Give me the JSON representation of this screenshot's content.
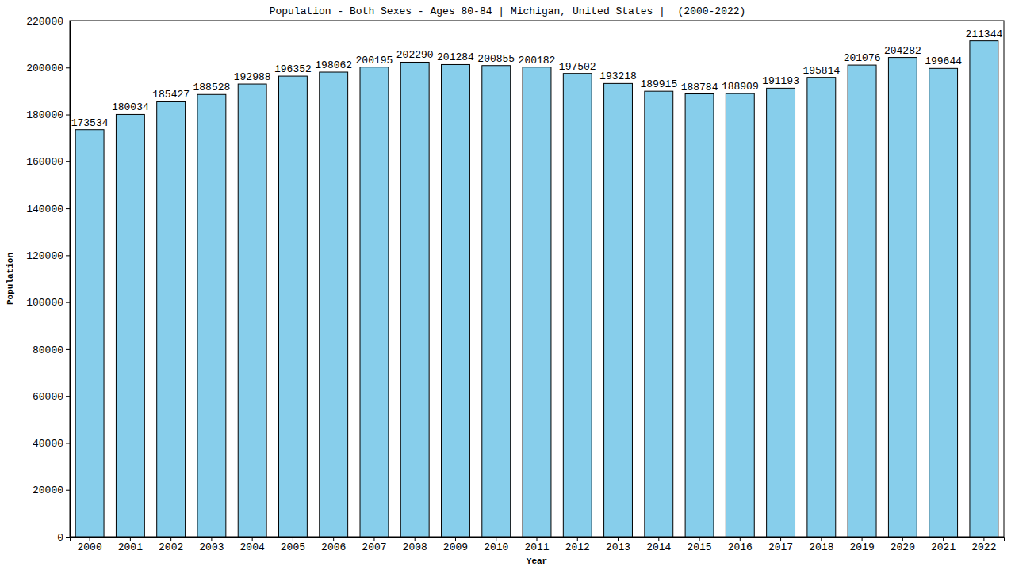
{
  "chart_data": {
    "type": "bar",
    "title": "Population - Both Sexes - Ages 80-84 | Michigan, United States |  (2000-2022)",
    "x_label": "Year",
    "y_label": "Population",
    "categories": [
      "2000",
      "2001",
      "2002",
      "2003",
      "2004",
      "2005",
      "2006",
      "2007",
      "2008",
      "2009",
      "2010",
      "2011",
      "2012",
      "2013",
      "2014",
      "2015",
      "2016",
      "2017",
      "2018",
      "2019",
      "2020",
      "2021",
      "2022"
    ],
    "values": [
      173534,
      180034,
      185427,
      188528,
      192988,
      196352,
      198062,
      200195,
      202290,
      201284,
      200855,
      200182,
      197502,
      193218,
      189915,
      188784,
      188909,
      191193,
      195814,
      201076,
      204282,
      199644,
      211344
    ],
    "color": "#87ceeb",
    "ylim": [
      0,
      220000
    ],
    "yticks": [
      0,
      20000,
      40000,
      60000,
      80000,
      100000,
      120000,
      140000,
      160000,
      180000,
      200000,
      220000
    ],
    "grid": false,
    "data_labels": true
  }
}
